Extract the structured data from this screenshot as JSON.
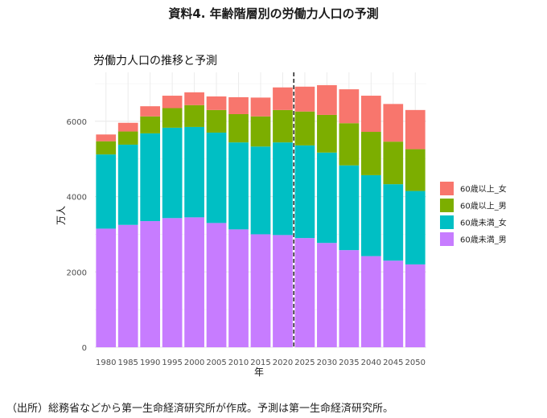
{
  "document": {
    "heading": "資料4. 年齢階層別の労働力人口の予測",
    "source": "（出所）総務省などから第一生命経済研究所が作成。予測は第一生命経済研究所。"
  },
  "chart_data": {
    "type": "bar",
    "stacked": true,
    "title": "労働力人口の推移と予測",
    "xlabel": "年",
    "ylabel": "万人",
    "ylim": [
      0,
      7300
    ],
    "yticks": [
      0,
      2000,
      4000,
      6000
    ],
    "categories": [
      "1980",
      "1985",
      "1990",
      "1995",
      "2000",
      "2005",
      "2010",
      "2015",
      "2020",
      "2025",
      "2030",
      "2035",
      "2040",
      "2045",
      "2050"
    ],
    "forecast_divider_between": [
      "2020",
      "2025"
    ],
    "legend_position": "right",
    "grid": true,
    "series": [
      {
        "name": "60歳未満_男",
        "color": "#c77cff",
        "values": [
          3150,
          3250,
          3350,
          3430,
          3450,
          3300,
          3130,
          3000,
          2980,
          2900,
          2770,
          2580,
          2420,
          2300,
          2200
        ]
      },
      {
        "name": "60歳未満_女",
        "color": "#00bfc4",
        "values": [
          1970,
          2130,
          2330,
          2400,
          2400,
          2400,
          2310,
          2330,
          2460,
          2460,
          2400,
          2250,
          2150,
          2030,
          1950
        ]
      },
      {
        "name": "60歳以上_男",
        "color": "#7cae00",
        "values": [
          350,
          350,
          450,
          520,
          580,
          600,
          750,
          800,
          860,
          900,
          1000,
          1120,
          1150,
          1130,
          1110
        ]
      },
      {
        "name": "60歳以上_女",
        "color": "#f8766d",
        "values": [
          180,
          230,
          270,
          330,
          340,
          360,
          450,
          500,
          600,
          660,
          790,
          900,
          960,
          1000,
          1040
        ]
      }
    ],
    "legend_order": [
      "60歳以上_女",
      "60歳以上_男",
      "60歳未満_女",
      "60歳未満_男"
    ]
  }
}
